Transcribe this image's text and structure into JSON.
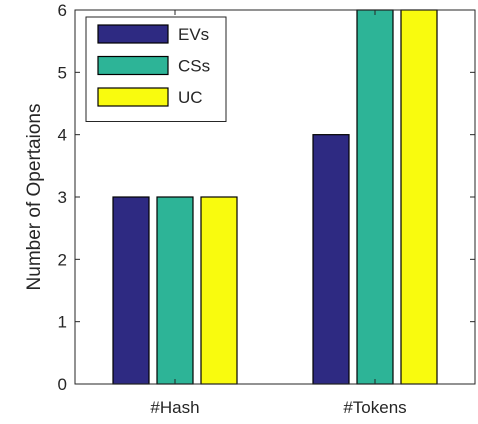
{
  "chart_data": {
    "type": "bar",
    "categories": [
      "#Hash",
      "#Tokens"
    ],
    "series": [
      {
        "name": "EVs",
        "values": [
          3,
          4
        ],
        "color": "#2e2a82"
      },
      {
        "name": "CSs",
        "values": [
          3,
          6
        ],
        "color": "#2db497"
      },
      {
        "name": "UC",
        "values": [
          3,
          6
        ],
        "color": "#f9fb0e"
      }
    ],
    "title": "",
    "xlabel": "",
    "ylabel": "Number of Opertaions",
    "ylim": [
      0,
      6
    ],
    "yticks": [
      0,
      1,
      2,
      3,
      4,
      5,
      6
    ],
    "grid": false,
    "legend_position": "top-left",
    "bar_edge_color": "#000000"
  }
}
